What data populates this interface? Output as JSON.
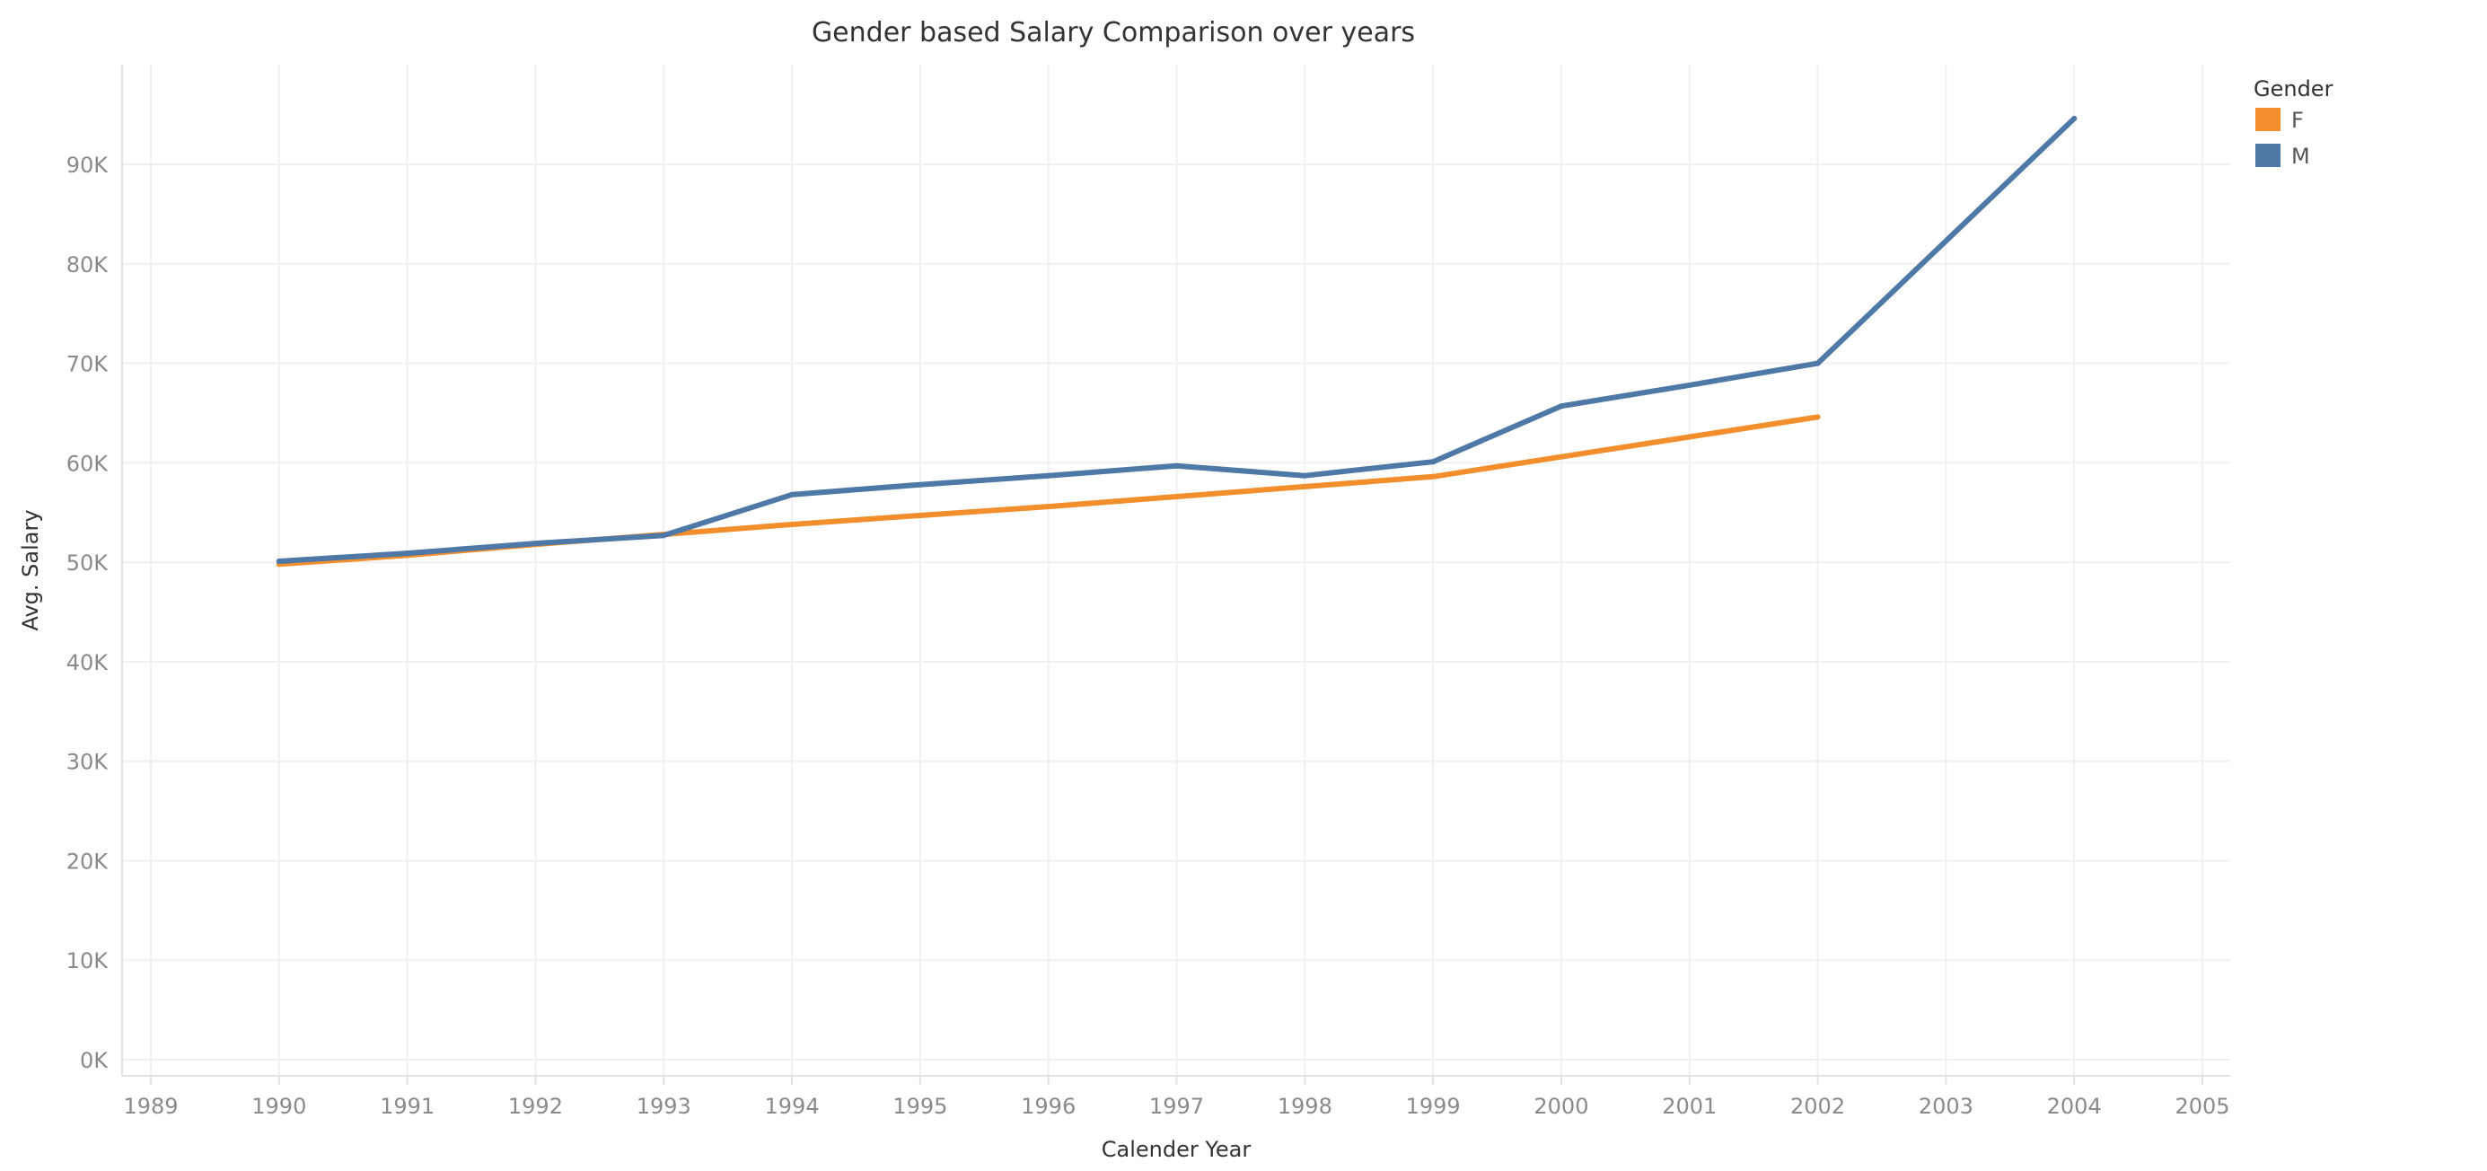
{
  "chart_data": {
    "type": "line",
    "title": "Gender based Salary Comparison over years",
    "xlabel": "Calender Year",
    "ylabel": "Avg. Salary",
    "x_ticks": [
      "1989",
      "1990",
      "1991",
      "1992",
      "1993",
      "1994",
      "1995",
      "1996",
      "1997",
      "1998",
      "1999",
      "2000",
      "2001",
      "2002",
      "2003",
      "2004",
      "2005"
    ],
    "y_ticks": [
      "0K",
      "10K",
      "20K",
      "30K",
      "40K",
      "50K",
      "60K",
      "70K",
      "80K",
      "90K"
    ],
    "xlim": [
      1989,
      2005
    ],
    "ylim": [
      0,
      100000
    ],
    "grid": true,
    "legend": {
      "title": "Gender",
      "placement": "top-right"
    },
    "series": [
      {
        "name": "F",
        "color": "#f28e2b",
        "x": [
          1990,
          1991,
          1992,
          1993,
          1994,
          1995,
          1996,
          1997,
          1998,
          1999,
          2000,
          2001,
          2002
        ],
        "values": [
          49800,
          50700,
          51800,
          52800,
          53800,
          54700,
          55600,
          56600,
          57600,
          58600,
          60600,
          62600,
          64600
        ]
      },
      {
        "name": "M",
        "color": "#4e79a7",
        "x": [
          1990,
          1991,
          1992,
          1993,
          1994,
          1995,
          1996,
          1997,
          1998,
          1999,
          2000,
          2001,
          2002,
          2004
        ],
        "values": [
          50100,
          50900,
          51900,
          52700,
          56800,
          57800,
          58700,
          59700,
          58700,
          60100,
          65700,
          67800,
          70000,
          94600
        ]
      }
    ]
  }
}
